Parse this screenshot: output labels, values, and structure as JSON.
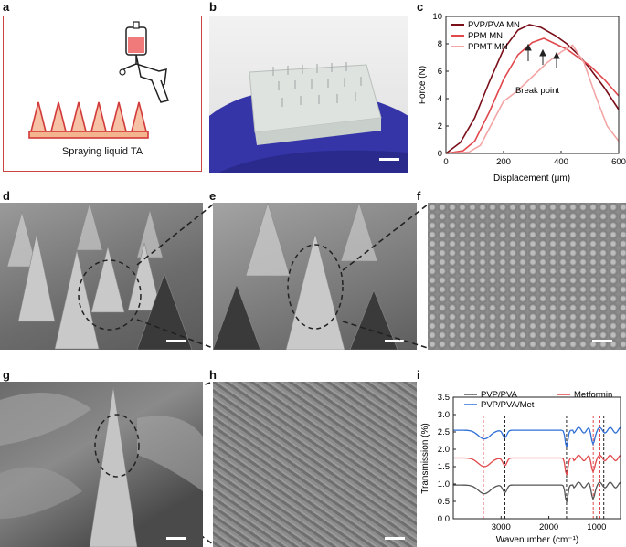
{
  "panel_labels": [
    "a",
    "b",
    "c",
    "d",
    "e",
    "f",
    "g",
    "h",
    "i"
  ],
  "panel_a": {
    "caption": "Spraying liquid TA"
  },
  "chart_c": {
    "type": "line",
    "xlabel": "Displacement (μm)",
    "ylabel": "Force (N)",
    "xlim": [
      0,
      600
    ],
    "ylim": [
      0,
      10
    ],
    "xticks": [
      "0",
      "200",
      "400",
      "600"
    ],
    "yticks": [
      "0",
      "2",
      "4",
      "6",
      "8",
      "10"
    ],
    "annotation": "Break point",
    "series": [
      {
        "name": "PVP/PVA MN",
        "color": "#7a0f1a",
        "x": [
          0,
          50,
          100,
          150,
          200,
          250,
          290,
          330,
          380,
          420,
          460,
          500,
          550,
          600
        ],
        "y": [
          0,
          0.8,
          2.6,
          5.2,
          7.6,
          9.0,
          9.4,
          9.2,
          8.6,
          8.0,
          7.2,
          6.2,
          4.8,
          3.2
        ]
      },
      {
        "name": "PPM MN",
        "color": "#e0484c",
        "x": [
          0,
          60,
          100,
          150,
          200,
          250,
          300,
          340,
          380,
          420,
          460,
          500,
          550,
          600
        ],
        "y": [
          0,
          0.2,
          0.9,
          3.0,
          5.4,
          7.2,
          8.1,
          8.4,
          8.0,
          7.6,
          7.0,
          6.4,
          5.4,
          4.2
        ]
      },
      {
        "name": "PPMT MN",
        "color": "#f3a6a6",
        "x": [
          0,
          80,
          120,
          160,
          200,
          250,
          300,
          350,
          400,
          440,
          480,
          520,
          560,
          600
        ],
        "y": [
          0,
          0.1,
          0.6,
          2.2,
          3.8,
          4.6,
          5.6,
          6.6,
          7.4,
          7.9,
          6.6,
          4.2,
          2.0,
          0.9
        ]
      }
    ]
  },
  "chart_i": {
    "type": "line",
    "xlabel": "Wavenumber (cm⁻¹)",
    "ylabel": "Transmission (%)",
    "xlim": [
      4000,
      500
    ],
    "ylim": [
      0,
      3.5
    ],
    "xticks": [
      "3000",
      "2000",
      "1000"
    ],
    "yticks": [
      "0.0",
      "0.5",
      "1.0",
      "1.5",
      "2.0",
      "2.5",
      "3.0",
      "3.5"
    ],
    "series": [
      {
        "name": "PVP/PVA",
        "color": "#555555"
      },
      {
        "name": "PVP/PVA/Met",
        "color": "#2f6fd6"
      },
      {
        "name": "Metformin",
        "color": "#e0484c"
      }
    ]
  }
}
